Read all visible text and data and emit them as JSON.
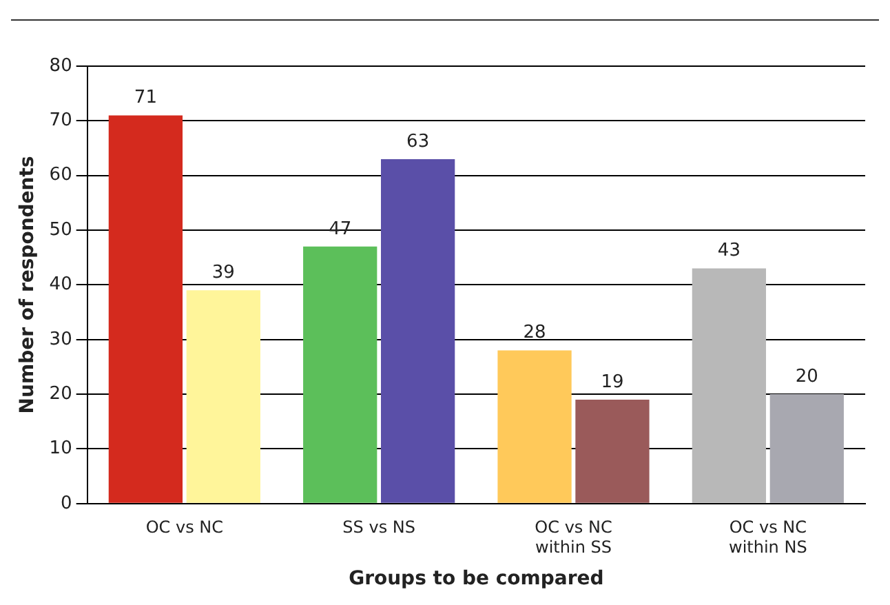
{
  "chart_data": {
    "type": "bar",
    "xlabel": "Groups to be compared",
    "ylabel": "Number of respondents",
    "categories": [
      "OC vs NC",
      "SS vs NS",
      "OC vs NC\nwithin SS",
      "OC vs NC\nwithin NS"
    ],
    "series": [
      {
        "values": [
          71,
          47,
          28,
          43
        ],
        "colors": [
          "#d42a1e",
          "#5cbf5a",
          "#ffc95a",
          "#b8b8b8"
        ]
      },
      {
        "values": [
          39,
          63,
          19,
          20
        ],
        "colors": [
          "#fff59a",
          "#5a4fa8",
          "#9a5a5a",
          "#a8a8b0"
        ]
      }
    ],
    "ylim": [
      0,
      80
    ],
    "yticks": [
      0,
      10,
      20,
      30,
      40,
      50,
      60,
      70,
      80
    ],
    "grid": "y",
    "data_labels": true,
    "legend": false
  }
}
